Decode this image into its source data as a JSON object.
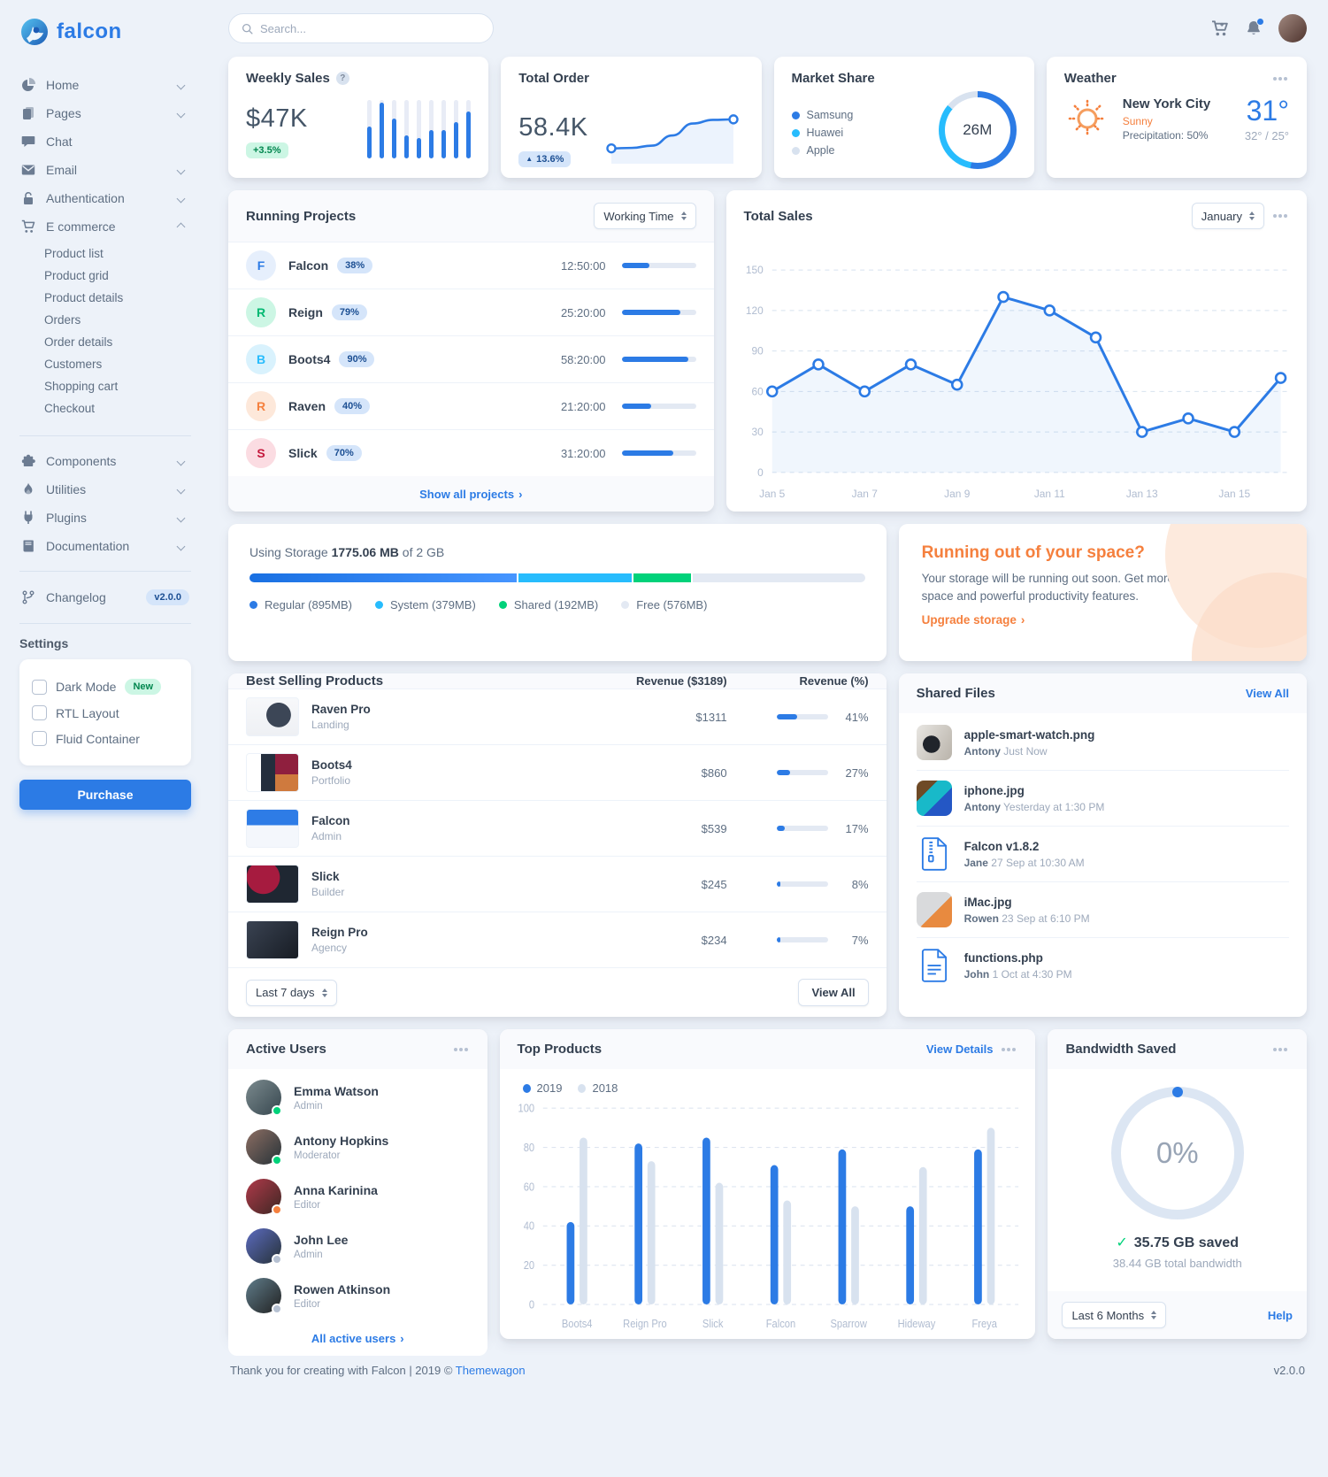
{
  "brand": "falcon",
  "topbar": {
    "search_placeholder": "Search...",
    "icons": [
      "cart-plus-icon",
      "bell-icon",
      "avatar"
    ]
  },
  "sidebar": {
    "nav": [
      {
        "label": "Home",
        "icon": "pie-chart-icon",
        "chevron": "down"
      },
      {
        "label": "Pages",
        "icon": "pages-icon",
        "chevron": "down"
      },
      {
        "label": "Chat",
        "icon": "chat-icon",
        "chevron": ""
      },
      {
        "label": "Email",
        "icon": "envelope-icon",
        "chevron": "down"
      },
      {
        "label": "Authentication",
        "icon": "lock-icon",
        "chevron": "down"
      },
      {
        "label": "E commerce",
        "icon": "cart-icon",
        "chevron": "up",
        "children": [
          "Product list",
          "Product grid",
          "Product details",
          "Orders",
          "Order details",
          "Customers",
          "Shopping cart",
          "Checkout"
        ]
      }
    ],
    "nav2": [
      {
        "label": "Components",
        "icon": "puzzle-icon",
        "chevron": "down"
      },
      {
        "label": "Utilities",
        "icon": "fire-icon",
        "chevron": "down"
      },
      {
        "label": "Plugins",
        "icon": "plug-icon",
        "chevron": "down"
      },
      {
        "label": "Documentation",
        "icon": "book-icon",
        "chevron": "down"
      }
    ],
    "changelog": {
      "label": "Changelog",
      "icon": "code-branch-icon",
      "badge": "v2.0.0"
    },
    "settings": {
      "heading": "Settings",
      "options": [
        {
          "label": "Dark Mode",
          "badge": "New",
          "checked": false
        },
        {
          "label": "RTL Layout",
          "badge": "",
          "checked": false
        },
        {
          "label": "Fluid Container",
          "badge": "",
          "checked": false
        }
      ],
      "purchase_label": "Purchase"
    }
  },
  "weekly_sales": {
    "title": "Weekly Sales",
    "value": "$47K",
    "badge": "+3.5%"
  },
  "total_order": {
    "title": "Total Order",
    "badge": "13.6%",
    "value": "58.4K"
  },
  "market_share": {
    "title": "Market Share"
  },
  "weather": {
    "title": "Weather",
    "city": "New York City",
    "condition": "Sunny",
    "precipitation": "Precipitation: 50%",
    "temp": "31°",
    "range": "32° / 25°"
  },
  "running_projects": {
    "title": "Running Projects",
    "select": "Working Time",
    "footer_link": "Show all projects",
    "rows": [
      {
        "letter": "F",
        "color": "blue",
        "name": "Falcon",
        "pct": 38,
        "time": "12:50:00"
      },
      {
        "letter": "R",
        "color": "green",
        "name": "Reign",
        "pct": 79,
        "time": "25:20:00"
      },
      {
        "letter": "B",
        "color": "cyan",
        "name": "Boots4",
        "pct": 90,
        "time": "58:20:00"
      },
      {
        "letter": "R",
        "color": "orange",
        "name": "Raven",
        "pct": 40,
        "time": "21:20:00"
      },
      {
        "letter": "S",
        "color": "red",
        "name": "Slick",
        "pct": 70,
        "time": "31:20:00"
      }
    ]
  },
  "total_sales": {
    "title": "Total Sales",
    "select": "January"
  },
  "storage": {
    "prefix": "Using Storage",
    "used": "1775.06 MB",
    "suffix": "of 2 GB",
    "total_mb": 2048,
    "segments": [
      {
        "label": "Regular (895MB)",
        "mb": 895,
        "color": "linear-gradient(90deg,#1970e2,#4695ff)",
        "dot": "#2c7be5"
      },
      {
        "label": "System (379MB)",
        "mb": 379,
        "color": "#27bcfd",
        "dot": "#27bcfd"
      },
      {
        "label": "Shared (192MB)",
        "mb": 192,
        "color": "#00d27a",
        "dot": "#00d27a"
      },
      {
        "label": "Free (576MB)",
        "mb": 576,
        "color": "#e3e9f3",
        "dot": "#e3e9f3"
      }
    ]
  },
  "space_cta": {
    "title": "Running out of your space?",
    "body": "Your storage will be running out soon. Get more space and powerful productivity features.",
    "link": "Upgrade storage"
  },
  "best_selling": {
    "title": "Best Selling Products",
    "col_revenue": "Revenue ($3189)",
    "col_pct": "Revenue (%)",
    "rows": [
      {
        "name": "Raven Pro",
        "category": "Landing",
        "revenue": "$1311",
        "pct": 41,
        "pct_label": "41%"
      },
      {
        "name": "Boots4",
        "category": "Portfolio",
        "revenue": "$860",
        "pct": 27,
        "pct_label": "27%"
      },
      {
        "name": "Falcon",
        "category": "Admin",
        "revenue": "$539",
        "pct": 17,
        "pct_label": "17%"
      },
      {
        "name": "Slick",
        "category": "Builder",
        "revenue": "$245",
        "pct": 8,
        "pct_label": "8%"
      },
      {
        "name": "Reign Pro",
        "category": "Agency",
        "revenue": "$234",
        "pct": 7,
        "pct_label": "7%"
      }
    ],
    "footer_select": "Last 7 days",
    "view_all": "View All"
  },
  "shared_files": {
    "title": "Shared Files",
    "view_all": "View All",
    "rows": [
      {
        "name": "apple-smart-watch.png",
        "by": "Antony",
        "time": "Just Now",
        "thumb": "image"
      },
      {
        "name": "iphone.jpg",
        "by": "Antony",
        "time": "Yesterday at 1:30 PM",
        "thumb": "image"
      },
      {
        "name": "Falcon v1.8.2",
        "by": "Jane",
        "time": "27 Sep at 10:30 AM",
        "thumb": "zip-file-icon"
      },
      {
        "name": "iMac.jpg",
        "by": "Rowen",
        "time": "23 Sep at 6:10 PM",
        "thumb": "image"
      },
      {
        "name": "functions.php",
        "by": "John",
        "time": "1 Oct at 4:30 PM",
        "thumb": "code-file-icon"
      }
    ]
  },
  "active_users": {
    "title": "Active Users",
    "footer_link": "All active users",
    "rows": [
      {
        "name": "Emma Watson",
        "role": "Admin",
        "status": "#00d27a"
      },
      {
        "name": "Antony Hopkins",
        "role": "Moderator",
        "status": "#00d27a"
      },
      {
        "name": "Anna Karinina",
        "role": "Editor",
        "status": "#f5803e"
      },
      {
        "name": "John Lee",
        "role": "Admin",
        "status": "#b6c1d2"
      },
      {
        "name": "Rowen Atkinson",
        "role": "Editor",
        "status": "#b6c1d2"
      }
    ]
  },
  "top_products": {
    "title": "Top Products",
    "view_details": "View Details"
  },
  "bandwidth": {
    "title": "Bandwidth Saved",
    "gauge_label": "0%",
    "saved": "35.75 GB saved",
    "total": "38.44 GB total bandwidth",
    "select": "Last 6 Months",
    "help": "Help"
  },
  "footer": {
    "text": "Thank you for creating with Falcon | 2019 © ",
    "link": "Themewagon",
    "version": "v2.0.0"
  },
  "chart_data": [
    {
      "id": "weekly-sales",
      "type": "bar",
      "values": [
        55,
        95,
        68,
        40,
        35,
        48,
        48,
        62,
        80
      ],
      "ylim": [
        0,
        100
      ],
      "color": "#2c7be5",
      "track_color": "#e8ecf6"
    },
    {
      "id": "total-order",
      "type": "line",
      "values": [
        18,
        19,
        24,
        46,
        72,
        80,
        81
      ],
      "ylim": [
        0,
        100
      ],
      "color": "#2c7be5"
    },
    {
      "id": "market-share",
      "type": "pie",
      "center_label": "26M",
      "slices": [
        {
          "label": "Samsung",
          "value": 53,
          "color": "#2c7be5"
        },
        {
          "label": "Huawei",
          "value": 33,
          "color": "#27bcfd"
        },
        {
          "label": "Apple",
          "value": 14,
          "color": "#d8e2ef"
        }
      ],
      "legend_position": "left"
    },
    {
      "id": "total-sales",
      "type": "line",
      "x": [
        "Jan 5",
        "Jan 6",
        "Jan 7",
        "Jan 8",
        "Jan 9",
        "Jan 10",
        "Jan 11",
        "Jan 12",
        "Jan 13",
        "Jan 14",
        "Jan 15",
        "Jan 16"
      ],
      "x_tick_labels": [
        "Jan 5",
        "Jan 7",
        "Jan 9",
        "Jan 11",
        "Jan 13",
        "Jan 15"
      ],
      "values": [
        60,
        80,
        60,
        80,
        65,
        130,
        120,
        100,
        30,
        40,
        30,
        70
      ],
      "yticks": [
        0,
        30,
        60,
        90,
        120,
        150
      ],
      "ylim": [
        0,
        150
      ],
      "color": "#2c7be5",
      "grid": "dashed",
      "marker": "hollow-circle"
    },
    {
      "id": "top-products",
      "type": "bar",
      "categories": [
        "Boots4",
        "Reign Pro",
        "Slick",
        "Falcon",
        "Sparrow",
        "Hideway",
        "Freya"
      ],
      "series": [
        {
          "name": "2019",
          "color": "#2c7be5",
          "values": [
            42,
            82,
            85,
            71,
            79,
            50,
            79
          ]
        },
        {
          "name": "2018",
          "color": "#d8e2ef",
          "values": [
            85,
            73,
            62,
            53,
            50,
            70,
            90
          ]
        }
      ],
      "yticks": [
        0,
        20,
        40,
        60,
        80,
        100
      ],
      "ylim": [
        0,
        100
      ],
      "grid": "dashed",
      "legend_position": "top-left"
    },
    {
      "id": "bandwidth-gauge",
      "type": "gauge",
      "value": 0,
      "label": "0%"
    }
  ]
}
